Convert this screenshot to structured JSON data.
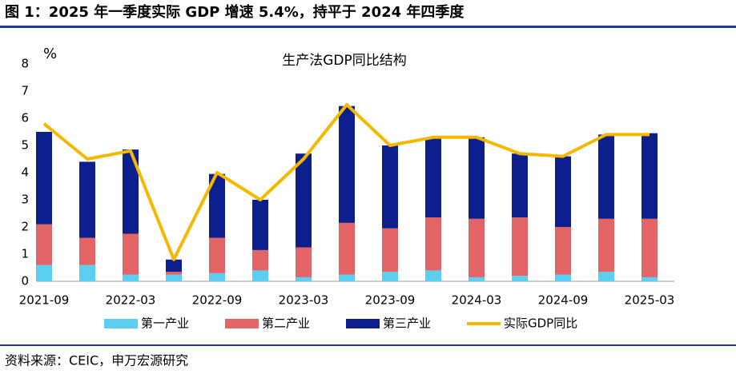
{
  "heading": "图 1：2025 年一季度实际 GDP 增速 5.4%，持平于 2024 年四季度",
  "chart_data": {
    "type": "bar",
    "stacked": true,
    "title": "生产法GDP同比结构",
    "y_unit": "%",
    "categories": [
      "2021-09",
      null,
      "2022-03",
      null,
      "2022-09",
      null,
      "2023-03",
      null,
      "2023-09",
      null,
      "2024-03",
      null,
      "2024-09",
      null,
      "2025-03"
    ],
    "series": [
      {
        "name": "第一产业",
        "color": "#5ccff0",
        "values": [
          0.6,
          0.6,
          0.25,
          0.25,
          0.3,
          0.4,
          0.15,
          0.25,
          0.35,
          0.4,
          0.15,
          0.2,
          0.25,
          0.35,
          0.15
        ]
      },
      {
        "name": "第二产业",
        "color": "#e26464",
        "values": [
          1.5,
          1.0,
          1.5,
          0.1,
          1.3,
          0.75,
          1.1,
          1.9,
          1.6,
          1.95,
          2.15,
          2.15,
          1.75,
          1.95,
          2.15
        ]
      },
      {
        "name": "第三产业",
        "color": "#0d1f8c",
        "values": [
          3.4,
          2.8,
          3.1,
          0.45,
          2.35,
          1.85,
          3.45,
          4.3,
          3.05,
          2.9,
          3.0,
          2.35,
          2.6,
          3.1,
          3.15
        ]
      },
      {
        "name": "实际GDP同比",
        "type": "line",
        "color": "#f5b800",
        "values": [
          5.8,
          4.5,
          4.8,
          0.8,
          4.0,
          3.0,
          4.5,
          6.5,
          5.0,
          5.3,
          5.3,
          4.7,
          4.6,
          5.4,
          5.4
        ]
      }
    ],
    "ylim": [
      0,
      8
    ],
    "yticks": [
      0,
      1,
      2,
      3,
      4,
      5,
      6,
      7,
      8
    ],
    "legend": "bottom"
  },
  "source": "资料来源：CEIC，申万宏源研究"
}
